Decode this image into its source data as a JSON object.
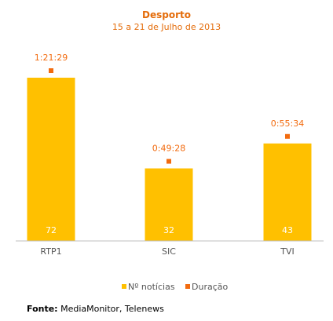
{
  "chart_data": {
    "type": "bar",
    "title": "Desporto",
    "subtitle": "15 a 21 de Julho de 2013",
    "categories": [
      "RTP1",
      "SIC",
      "TVI"
    ],
    "series": [
      {
        "name": "Nº notícias",
        "type": "bar",
        "values": [
          72,
          32,
          43
        ],
        "color": "#FFC000"
      },
      {
        "name": "Duração",
        "type": "marker",
        "values": [
          "1:21:29",
          "0:49:28",
          "0:55:34"
        ],
        "seconds": [
          4889,
          2968,
          3334
        ],
        "color": "#F26B0F"
      }
    ],
    "ylim": [
      0,
      80
    ],
    "grid": false,
    "legend_position": "bottom",
    "colors": {
      "title": "#E46C0A",
      "axis": "#BFBFBF",
      "bar_label": "#FFFFFF"
    }
  },
  "source": {
    "label": "Fonte:",
    "text": "MediaMonitor, Telenews"
  }
}
